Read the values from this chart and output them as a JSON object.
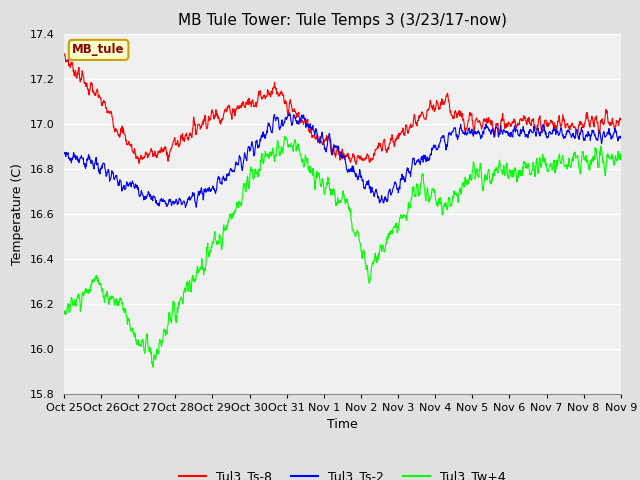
{
  "title": "MB Tule Tower: Tule Temps 3 (3/23/17-now)",
  "xlabel": "Time",
  "ylabel": "Temperature (C)",
  "ylim": [
    15.8,
    17.4
  ],
  "yticks": [
    15.8,
    16.0,
    16.2,
    16.4,
    16.6,
    16.8,
    17.0,
    17.2,
    17.4
  ],
  "xtick_labels": [
    "Oct 25",
    "Oct 26",
    "Oct 27",
    "Oct 28",
    "Oct 29",
    "Oct 30",
    "Oct 31",
    "Nov 1",
    "Nov 2",
    "Nov 3",
    "Nov 4",
    "Nov 5",
    "Nov 6",
    "Nov 7",
    "Nov 8",
    "Nov 9"
  ],
  "legend_labels": [
    "Tul3_Ts-8",
    "Tul3_Ts-2",
    "Tul3_Tw+4"
  ],
  "line_colors": [
    "red",
    "blue",
    "lime"
  ],
  "station_label": "MB_tule",
  "bg_color": "#e0e0e0",
  "plot_bg_color": "#f0f0f0",
  "grid_color": "white",
  "title_fontsize": 11,
  "axis_fontsize": 9,
  "tick_fontsize": 8,
  "n_points": 1500
}
